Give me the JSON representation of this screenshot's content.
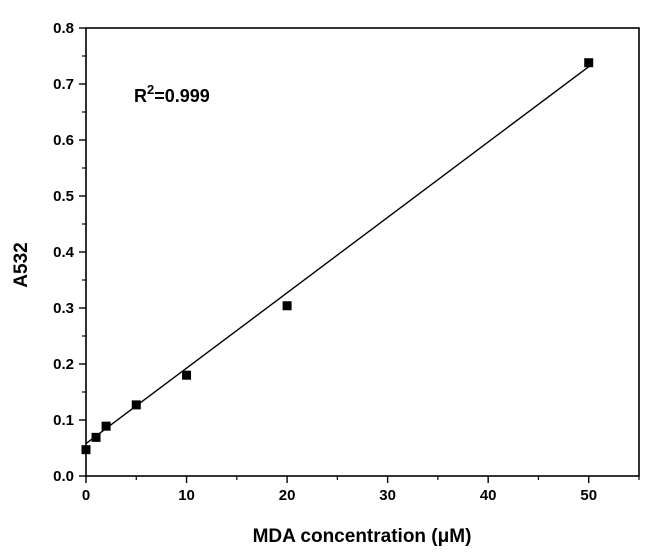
{
  "chart_data": {
    "type": "scatter",
    "xlabel": "MDA concentration (μM)",
    "ylabel": "A532",
    "xlim": [
      0,
      55
    ],
    "ylim": [
      0,
      0.8
    ],
    "x_ticks": [
      "0",
      "10",
      "20",
      "30",
      "40",
      "50"
    ],
    "y_ticks": [
      "0.0",
      "0.1",
      "0.2",
      "0.3",
      "0.4",
      "0.5",
      "0.6",
      "0.7",
      "0.8"
    ],
    "x_tick_values": [
      0,
      10,
      20,
      30,
      40,
      50
    ],
    "y_tick_values": [
      0,
      0.1,
      0.2,
      0.3,
      0.4,
      0.5,
      0.6,
      0.7,
      0.8
    ],
    "series": [
      {
        "x": [
          0,
          1,
          2,
          5,
          10,
          20,
          50
        ],
        "y": [
          0.047,
          0.069,
          0.089,
          0.127,
          0.18,
          0.304,
          0.738
        ]
      }
    ],
    "fit_line": {
      "x": [
        0,
        50
      ],
      "y": [
        0.058,
        0.731
      ]
    },
    "annotation": {
      "base": "R",
      "sup": "2",
      "rest": "=0.999"
    },
    "grid": false,
    "legend": "none",
    "colors": {
      "marker": "#000000",
      "line": "#000000",
      "axis": "#000000"
    }
  }
}
